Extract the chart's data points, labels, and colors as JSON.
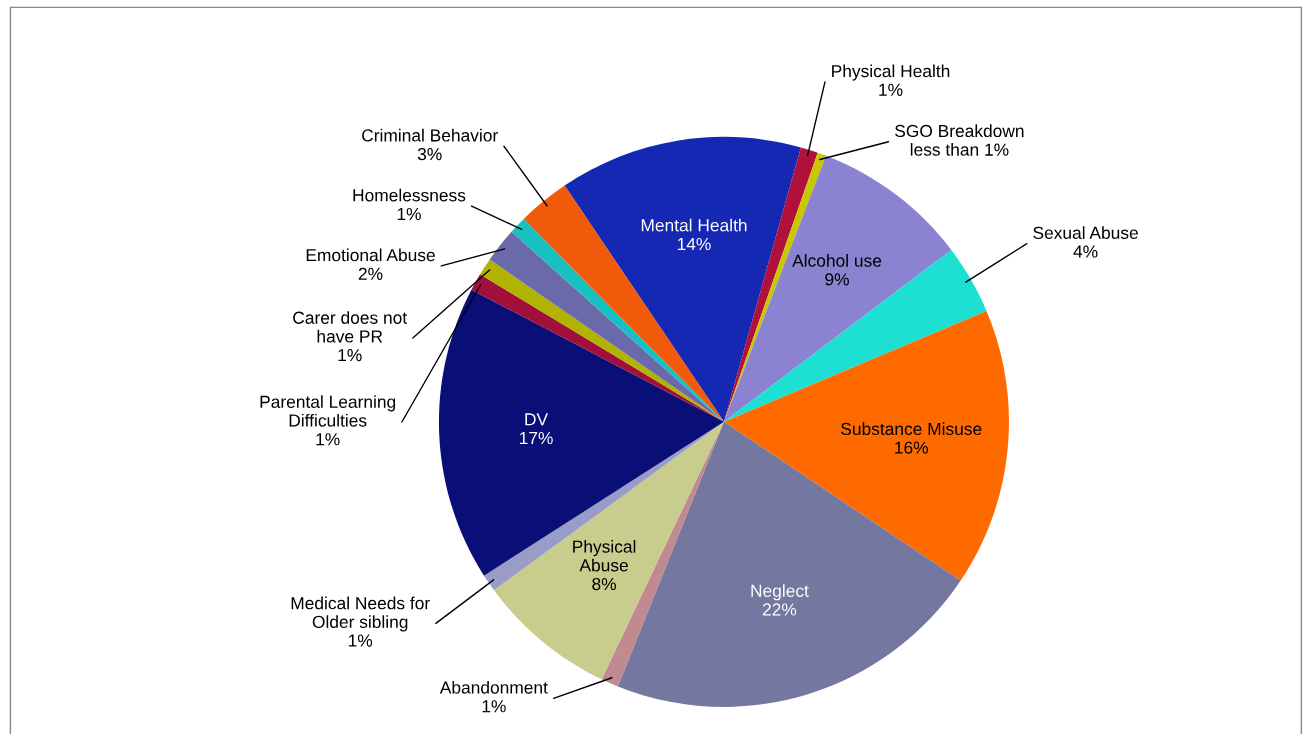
{
  "chart_data": {
    "type": "pie",
    "categories": [
      "Mental Health",
      "Physical Health",
      "SGO Breakdown",
      "Alcohol use",
      "Sexual Abuse",
      "Substance Misuse",
      "Neglect",
      "Abandonment",
      "Physical Abuse",
      "Medical Needs for Older sibling",
      "DV",
      "Parental Learning Difficulties",
      "Carer does not have PR",
      "Emotional Abuse",
      "Homelessness",
      "Criminal Behavior"
    ],
    "values": [
      14,
      1,
      0.5,
      9,
      4,
      16,
      22,
      1,
      8,
      1,
      17,
      1,
      1,
      2,
      1,
      3
    ],
    "value_labels": [
      "14%",
      "1%",
      "less than 1%",
      "9%",
      "4%",
      "16%",
      "22%",
      "1%",
      "8%",
      "1%",
      "17%",
      "1%",
      "1%",
      "2%",
      "1%",
      "3%"
    ],
    "colors": [
      "#1428b4",
      "#b0103a",
      "#c8c800",
      "#8c82d2",
      "#1ee0d2",
      "#ff6a00",
      "#7478a0",
      "#c08a90",
      "#c8cc8c",
      "#9a9cc8",
      "#0a0f78",
      "#a0103a",
      "#b0b400",
      "#6a6aaa",
      "#18c0c0",
      "#f05a0a"
    ]
  }
}
